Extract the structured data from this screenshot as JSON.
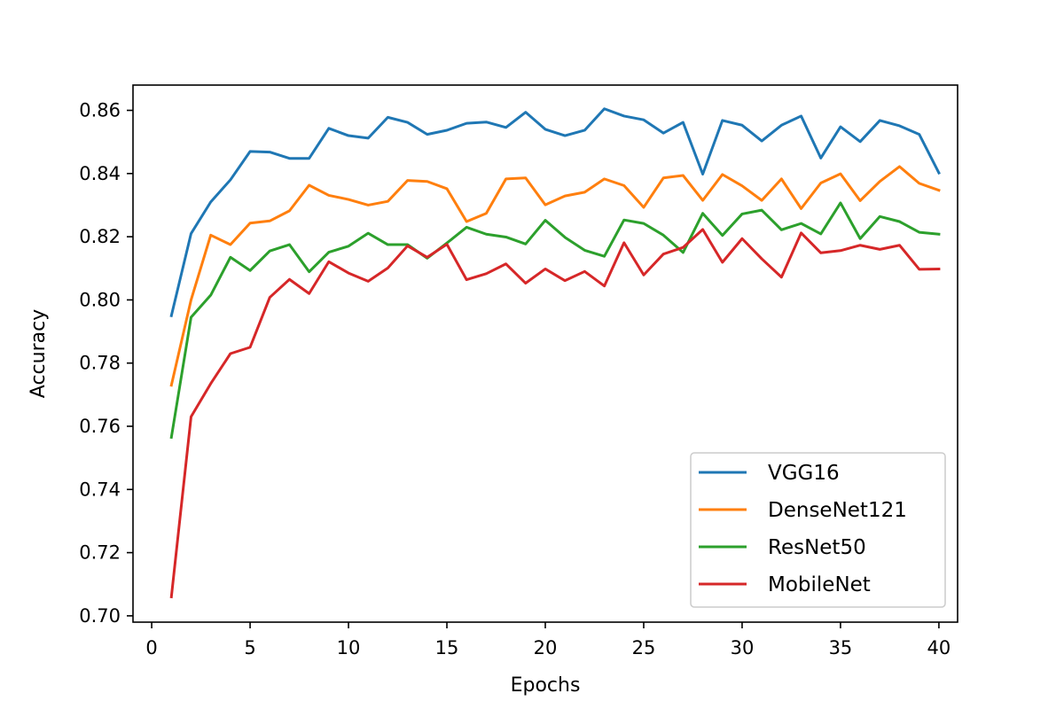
{
  "chart_data": {
    "type": "line",
    "title": "",
    "xlabel": "Epochs",
    "ylabel": "Accuracy",
    "xlim": [
      -0.95,
      40.95
    ],
    "ylim": [
      0.698,
      0.868
    ],
    "x_ticks": [
      0,
      5,
      10,
      15,
      20,
      25,
      30,
      35,
      40
    ],
    "x_tick_labels": [
      "0",
      "5",
      "10",
      "15",
      "20",
      "25",
      "30",
      "35",
      "40"
    ],
    "y_ticks": [
      0.7,
      0.72,
      0.74,
      0.76,
      0.78,
      0.8,
      0.82,
      0.84,
      0.86
    ],
    "y_tick_labels": [
      "0.70",
      "0.72",
      "0.74",
      "0.76",
      "0.78",
      "0.80",
      "0.82",
      "0.84",
      "0.86"
    ],
    "grid": false,
    "legend_position": "lower-right",
    "x": [
      1,
      2,
      3,
      4,
      5,
      6,
      7,
      8,
      9,
      10,
      11,
      12,
      13,
      14,
      15,
      16,
      17,
      18,
      19,
      20,
      21,
      22,
      23,
      24,
      25,
      26,
      27,
      28,
      29,
      30,
      31,
      32,
      33,
      34,
      35,
      36,
      37,
      38,
      39,
      40
    ],
    "series": [
      {
        "name": "VGG16",
        "color": "#1f77b4",
        "values": [
          0.795,
          0.821,
          0.831,
          0.838,
          0.847,
          0.8468,
          0.8448,
          0.8448,
          0.8543,
          0.852,
          0.8512,
          0.8578,
          0.8562,
          0.8524,
          0.8537,
          0.8559,
          0.8563,
          0.8546,
          0.8594,
          0.854,
          0.852,
          0.8537,
          0.8605,
          0.8582,
          0.857,
          0.8528,
          0.8562,
          0.8398,
          0.8568,
          0.8553,
          0.8503,
          0.8553,
          0.8582,
          0.8449,
          0.8548,
          0.8501,
          0.8568,
          0.8551,
          0.8524,
          0.8402
        ]
      },
      {
        "name": "DenseNet121",
        "color": "#ff7f0e",
        "values": [
          0.773,
          0.8,
          0.8205,
          0.8175,
          0.8243,
          0.825,
          0.8282,
          0.8363,
          0.8331,
          0.8318,
          0.83,
          0.8312,
          0.8378,
          0.8375,
          0.8352,
          0.8248,
          0.8274,
          0.8383,
          0.8386,
          0.8301,
          0.8329,
          0.8341,
          0.8383,
          0.8362,
          0.8293,
          0.8386,
          0.8394,
          0.8315,
          0.8397,
          0.8361,
          0.8315,
          0.8383,
          0.8289,
          0.837,
          0.8399,
          0.8314,
          0.8375,
          0.8422,
          0.8369,
          0.8347
        ]
      },
      {
        "name": "ResNet50",
        "color": "#2ca02c",
        "values": [
          0.7565,
          0.7945,
          0.8015,
          0.8135,
          0.8093,
          0.8155,
          0.8175,
          0.8089,
          0.8151,
          0.817,
          0.8211,
          0.8175,
          0.8175,
          0.8132,
          0.818,
          0.823,
          0.8208,
          0.8199,
          0.8177,
          0.8252,
          0.8198,
          0.8157,
          0.8138,
          0.8253,
          0.8242,
          0.8205,
          0.815,
          0.8274,
          0.8204,
          0.8272,
          0.8284,
          0.8222,
          0.8242,
          0.8209,
          0.8307,
          0.8194,
          0.8264,
          0.8248,
          0.8214,
          0.8208
        ]
      },
      {
        "name": "MobileNet",
        "color": "#d62728",
        "values": [
          0.706,
          0.763,
          0.7735,
          0.783,
          0.785,
          0.8008,
          0.8065,
          0.802,
          0.8121,
          0.8085,
          0.8059,
          0.8101,
          0.8171,
          0.8135,
          0.8176,
          0.8064,
          0.8083,
          0.8114,
          0.8053,
          0.8098,
          0.8061,
          0.809,
          0.8044,
          0.8181,
          0.8079,
          0.8145,
          0.8166,
          0.8223,
          0.8119,
          0.8194,
          0.813,
          0.8072,
          0.8212,
          0.8149,
          0.8156,
          0.8173,
          0.816,
          0.8173,
          0.8097,
          0.8098
        ]
      }
    ]
  }
}
